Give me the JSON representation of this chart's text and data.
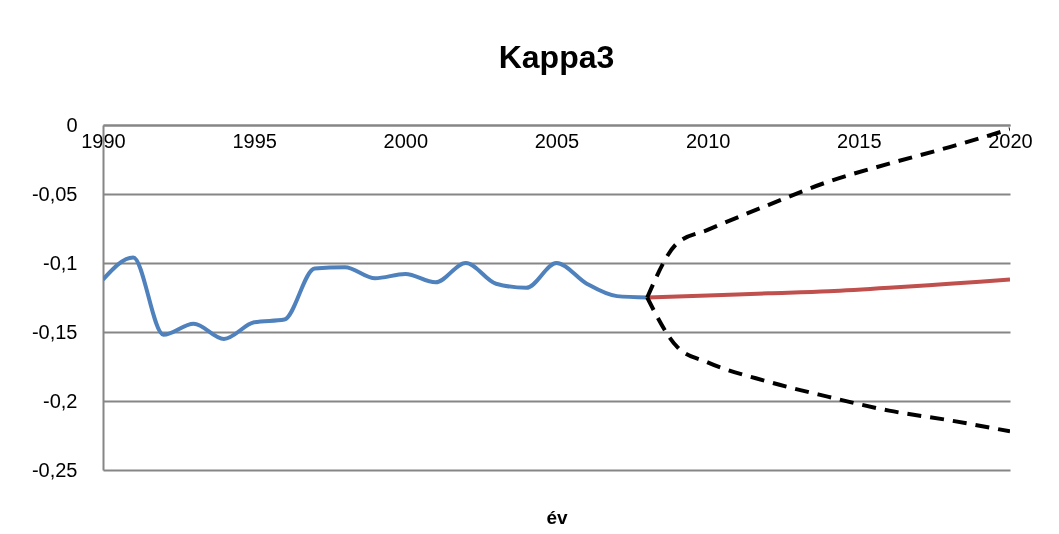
{
  "chart_data": {
    "type": "line",
    "title": "Kappa3",
    "xlabel": "év",
    "xlim": [
      1990,
      2020
    ],
    "xticks": [
      1990,
      1995,
      2000,
      2005,
      2010,
      2015,
      2020
    ],
    "ylim": [
      -0.25,
      0
    ],
    "yticks": [
      {
        "value": -0.25,
        "label": "-0,25"
      },
      {
        "value": -0.2,
        "label": "-0,2"
      },
      {
        "value": -0.15,
        "label": "-0,15"
      },
      {
        "value": -0.1,
        "label": "-0,1"
      },
      {
        "value": -0.05,
        "label": "-0,05"
      },
      {
        "value": 0,
        "label": "0"
      }
    ],
    "grid": "y",
    "series": [
      {
        "color": "#4f81bd",
        "line_style": "solid",
        "x": [
          1990,
          1991,
          1992,
          1993,
          1994,
          1995,
          1996,
          1997,
          1998,
          1999,
          2000,
          2001,
          2002,
          2003,
          2004,
          2005,
          2006,
          2007,
          2008
        ],
        "values": [
          -0.112,
          -0.096,
          -0.152,
          -0.144,
          -0.155,
          -0.143,
          -0.141,
          -0.104,
          -0.103,
          -0.111,
          -0.108,
          -0.114,
          -0.1,
          -0.115,
          -0.118,
          -0.1,
          -0.115,
          -0.124,
          -0.125
        ]
      },
      {
        "color": "#c0504d",
        "line_style": "solid",
        "x": [
          2008,
          2010,
          2012,
          2014,
          2016,
          2018,
          2020
        ],
        "values": [
          -0.125,
          -0.1235,
          -0.122,
          -0.1205,
          -0.118,
          -0.115,
          -0.112
        ]
      },
      {
        "color": "#000000",
        "line_style": "dashed",
        "x": [
          2008,
          2009,
          2010,
          2012,
          2014,
          2016,
          2018,
          2020
        ],
        "values": [
          -0.125,
          -0.0855,
          -0.076,
          -0.058,
          -0.041,
          -0.028,
          -0.016,
          -0.003
        ]
      },
      {
        "color": "#000000",
        "line_style": "dashed",
        "x": [
          2008,
          2009,
          2010,
          2012,
          2014,
          2016,
          2018,
          2020
        ],
        "values": [
          -0.125,
          -0.161,
          -0.172,
          -0.186,
          -0.197,
          -0.207,
          -0.214,
          -0.222
        ]
      }
    ]
  }
}
